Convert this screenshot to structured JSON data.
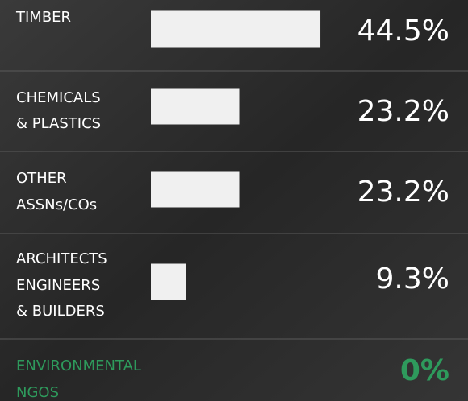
{
  "chart_data": {
    "type": "bar",
    "categories": [
      [
        "TIMBER"
      ],
      [
        "CHEMICALS",
        "& PLASTICS"
      ],
      [
        "OTHER",
        "ASSNs/COs"
      ],
      [
        "ARCHITECTS",
        "ENGINEERS",
        "& BUILDERS"
      ],
      [
        "ENVIRONMENTAL",
        "NGOS"
      ]
    ],
    "values": [
      44.5,
      23.2,
      23.2,
      9.3,
      0
    ],
    "value_labels": [
      "44.5%",
      "23.2%",
      "23.2%",
      "9.3%",
      "0%"
    ],
    "color": "#f0f0f0",
    "text_colors": [
      "#ffffff",
      "#ffffff",
      "#ffffff",
      "#ffffff",
      "#2e9a5c"
    ]
  }
}
